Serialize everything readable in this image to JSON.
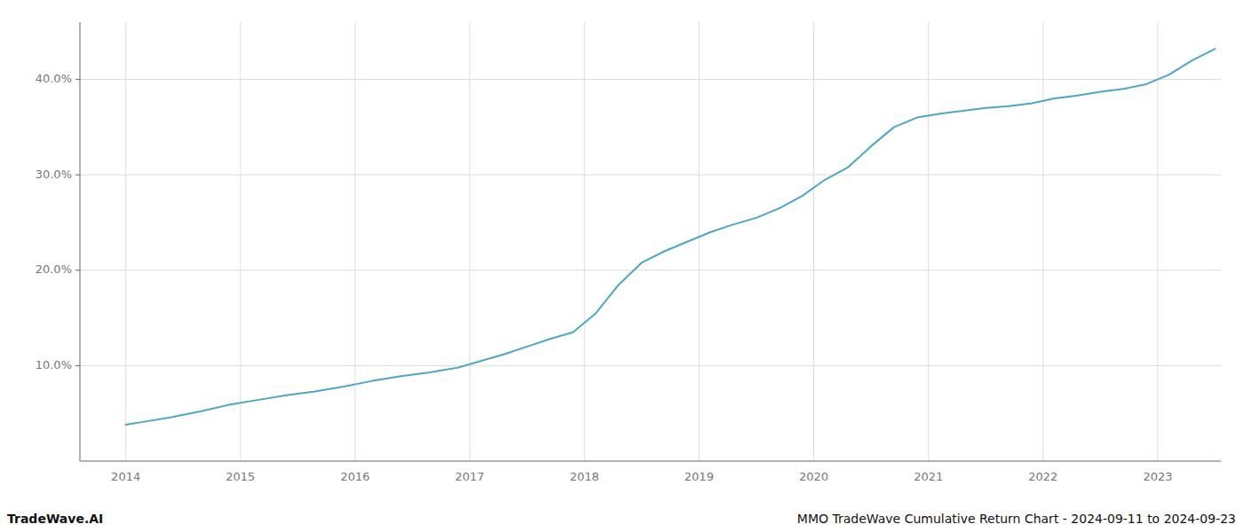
{
  "chart_data": {
    "type": "line",
    "title": "MMO TradeWave Cumulative Return Chart - 2024-09-11 to 2024-09-23",
    "annotations": [
      "TradeWave.AI"
    ],
    "color": "#4da6c8",
    "grid": true,
    "x": [
      2014.0,
      2014.15,
      2014.4,
      2014.65,
      2014.9,
      2015.15,
      2015.4,
      2015.65,
      2015.9,
      2016.15,
      2016.4,
      2016.65,
      2016.9,
      2017.1,
      2017.3,
      2017.5,
      2017.7,
      2017.9,
      2018.1,
      2018.3,
      2018.5,
      2018.7,
      2018.9,
      2019.1,
      2019.3,
      2019.5,
      2019.7,
      2019.9,
      2020.1,
      2020.3,
      2020.5,
      2020.7,
      2020.9,
      2021.1,
      2021.3,
      2021.5,
      2021.7,
      2021.9,
      2022.1,
      2022.3,
      2022.5,
      2022.7,
      2022.9,
      2023.1,
      2023.3,
      2023.5
    ],
    "values": [
      3.8,
      4.1,
      4.6,
      5.2,
      5.9,
      6.4,
      6.9,
      7.3,
      7.8,
      8.4,
      8.9,
      9.3,
      9.8,
      10.5,
      11.2,
      12.0,
      12.8,
      13.5,
      15.5,
      18.5,
      20.8,
      22.0,
      23.0,
      24.0,
      24.8,
      25.5,
      26.5,
      27.8,
      29.5,
      30.8,
      33.0,
      35.0,
      36.0,
      36.4,
      36.7,
      37.0,
      37.2,
      37.5,
      38.0,
      38.3,
      38.7,
      39.0,
      39.5,
      40.5,
      42.0,
      43.2
    ],
    "xlim": [
      2013.6,
      2023.55
    ],
    "xticks": [
      2014,
      2015,
      2016,
      2017,
      2018,
      2019,
      2020,
      2021,
      2022,
      2023
    ],
    "ylim": [
      0,
      46
    ],
    "yticks": [
      {
        "value": 10.0,
        "label": "10.0%"
      },
      {
        "value": 20.0,
        "label": "20.0%"
      },
      {
        "value": 30.0,
        "label": "30.0%"
      },
      {
        "value": 40.0,
        "label": "40.0%"
      }
    ]
  }
}
